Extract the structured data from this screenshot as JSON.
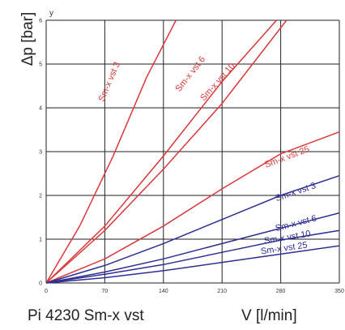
{
  "chart_data": {
    "type": "line",
    "title": "",
    "caption": "Pi 4230 Sm-x vst",
    "xlabel": "V [l/min]",
    "ylabel": "Δp [bar]",
    "y_corner_label": "y",
    "xlim": [
      0,
      350
    ],
    "ylim": [
      0,
      6
    ],
    "x_ticks": [
      "0",
      "70",
      "140",
      "210",
      "280",
      "350"
    ],
    "y_ticks": [
      "0",
      "1",
      "2",
      "3",
      "4",
      "5",
      "6"
    ],
    "grid": true,
    "colors": {
      "red": "#d8393a",
      "blue": "#2e2e94",
      "grid": "#222222"
    },
    "series": [
      {
        "label": "Sm-x vst 3",
        "color": "red",
        "points": [
          [
            0,
            0
          ],
          [
            40,
            1.3
          ],
          [
            80,
            2.9
          ],
          [
            120,
            4.7
          ],
          [
            155,
            6.0
          ]
        ]
      },
      {
        "label": "Sm-x vst 6",
        "color": "red",
        "points": [
          [
            0,
            0
          ],
          [
            70,
            1.3
          ],
          [
            140,
            2.9
          ],
          [
            210,
            4.6
          ],
          [
            275,
            6.0
          ]
        ]
      },
      {
        "label": "Sm-x vst 10",
        "color": "red",
        "points": [
          [
            0,
            0
          ],
          [
            70,
            1.2
          ],
          [
            140,
            2.6
          ],
          [
            210,
            4.1
          ],
          [
            287,
            6.0
          ]
        ]
      },
      {
        "label": "Sm-x vst 25",
        "color": "red",
        "points": [
          [
            0,
            0
          ],
          [
            70,
            0.55
          ],
          [
            140,
            1.3
          ],
          [
            210,
            2.15
          ],
          [
            280,
            2.95
          ],
          [
            350,
            3.45
          ]
        ]
      },
      {
        "label": "Sm-x vst 3",
        "color": "blue",
        "points": [
          [
            0,
            0
          ],
          [
            70,
            0.4
          ],
          [
            140,
            0.9
          ],
          [
            210,
            1.45
          ],
          [
            280,
            2.0
          ],
          [
            350,
            2.45
          ]
        ]
      },
      {
        "label": "Sm-x vst 6",
        "color": "blue",
        "points": [
          [
            0,
            0
          ],
          [
            70,
            0.25
          ],
          [
            140,
            0.55
          ],
          [
            210,
            0.9
          ],
          [
            280,
            1.25
          ],
          [
            350,
            1.6
          ]
        ]
      },
      {
        "label": "Sm-x vst 10",
        "color": "blue",
        "points": [
          [
            0,
            0
          ],
          [
            70,
            0.2
          ],
          [
            140,
            0.42
          ],
          [
            210,
            0.7
          ],
          [
            280,
            0.98
          ],
          [
            350,
            1.2
          ]
        ]
      },
      {
        "label": "Sm-x vst 25",
        "color": "blue",
        "points": [
          [
            0,
            0
          ],
          [
            70,
            0.12
          ],
          [
            140,
            0.28
          ],
          [
            210,
            0.47
          ],
          [
            280,
            0.66
          ],
          [
            350,
            0.85
          ]
        ]
      }
    ]
  }
}
